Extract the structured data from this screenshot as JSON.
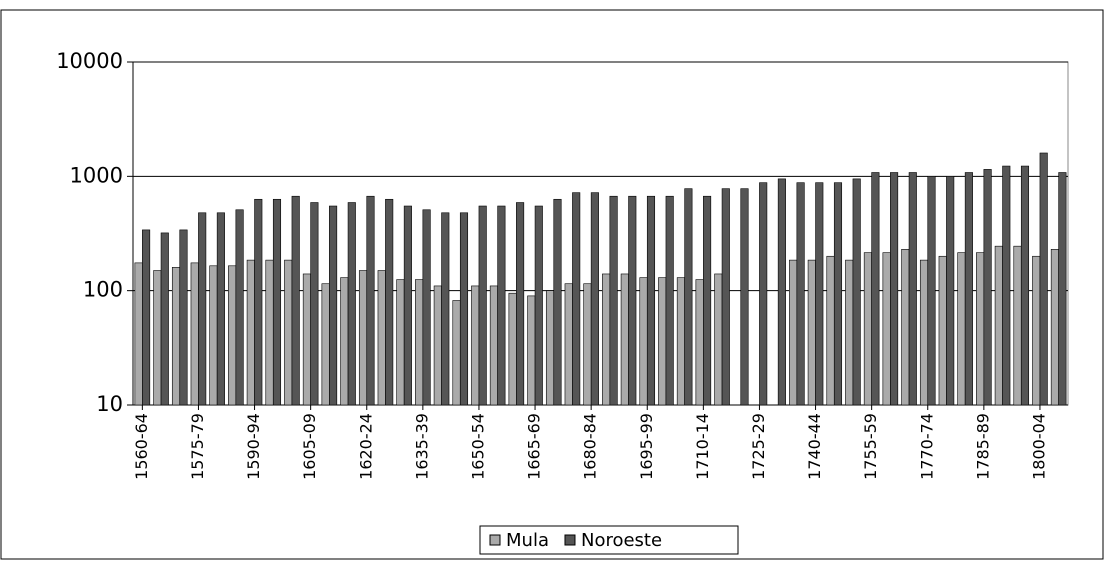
{
  "chart_data": {
    "type": "bar",
    "log_scale": true,
    "grid": true,
    "legend": "bottom",
    "categories": [
      "1560-64",
      null,
      null,
      "1575-79",
      null,
      null,
      "1590-94",
      null,
      null,
      "1605-09",
      null,
      null,
      "1620-24",
      null,
      null,
      "1635-39",
      null,
      null,
      "1650-54",
      null,
      null,
      "1665-69",
      null,
      null,
      "1680-84",
      null,
      null,
      "1695-99",
      null,
      null,
      "1710-14",
      null,
      null,
      "1725-29",
      null,
      null,
      "1740-44",
      null,
      null,
      "1755-59",
      null,
      null,
      "1770-74",
      null,
      null,
      "1785-89",
      null,
      null,
      "1800-04",
      null
    ],
    "series": [
      {
        "name": "Mula",
        "color": "#aaaaaa",
        "values": [
          175,
          150,
          160,
          175,
          165,
          165,
          185,
          185,
          185,
          140,
          115,
          130,
          150,
          150,
          125,
          125,
          110,
          82,
          110,
          110,
          95,
          90,
          100,
          115,
          115,
          140,
          140,
          130,
          130,
          130,
          125,
          140,
          null,
          null,
          null,
          185,
          185,
          200,
          185,
          215,
          215,
          230,
          185,
          200,
          215,
          215,
          245,
          245,
          200,
          230
        ]
      },
      {
        "name": "Noroeste",
        "color": "#555555",
        "values": [
          340,
          320,
          340,
          480,
          480,
          510,
          630,
          630,
          670,
          590,
          550,
          590,
          670,
          630,
          550,
          510,
          480,
          480,
          550,
          550,
          590,
          550,
          630,
          720,
          720,
          670,
          670,
          670,
          670,
          780,
          670,
          780,
          780,
          880,
          950,
          880,
          880,
          880,
          950,
          1080,
          1080,
          1080,
          1000,
          1000,
          1080,
          1150,
          1230,
          1230,
          1600,
          1080
        ]
      }
    ],
    "ylim": [
      10,
      10000
    ],
    "yticks": [
      10,
      100,
      1000,
      10000
    ]
  }
}
